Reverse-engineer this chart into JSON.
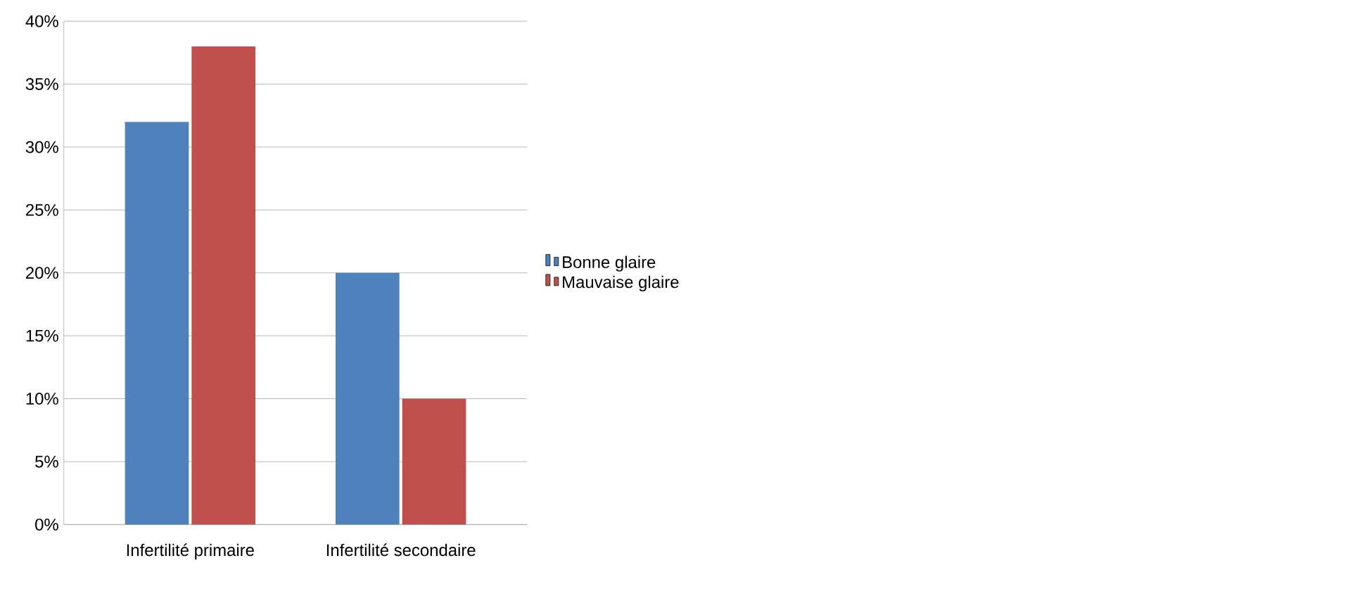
{
  "chart_data": {
    "type": "bar",
    "categories": [
      "Infertilité primaire",
      "Infertilité secondaire"
    ],
    "series": [
      {
        "name": "Bonne glaire",
        "color": "#4f81bd",
        "values": [
          32,
          20
        ]
      },
      {
        "name": "Mauvaise glaire",
        "color": "#c0504d",
        "values": [
          38,
          10
        ]
      }
    ],
    "ylim": [
      0,
      40
    ],
    "yticks": [
      {
        "value": 0,
        "label": "0%"
      },
      {
        "value": 5,
        "label": "5%"
      },
      {
        "value": 10,
        "label": "10%"
      },
      {
        "value": 15,
        "label": "15%"
      },
      {
        "value": 20,
        "label": "20%"
      },
      {
        "value": 25,
        "label": "25%"
      },
      {
        "value": 30,
        "label": "30%"
      },
      {
        "value": 35,
        "label": "35%"
      },
      {
        "value": 40,
        "label": "40%"
      }
    ],
    "grid": "y",
    "legend": "right"
  }
}
